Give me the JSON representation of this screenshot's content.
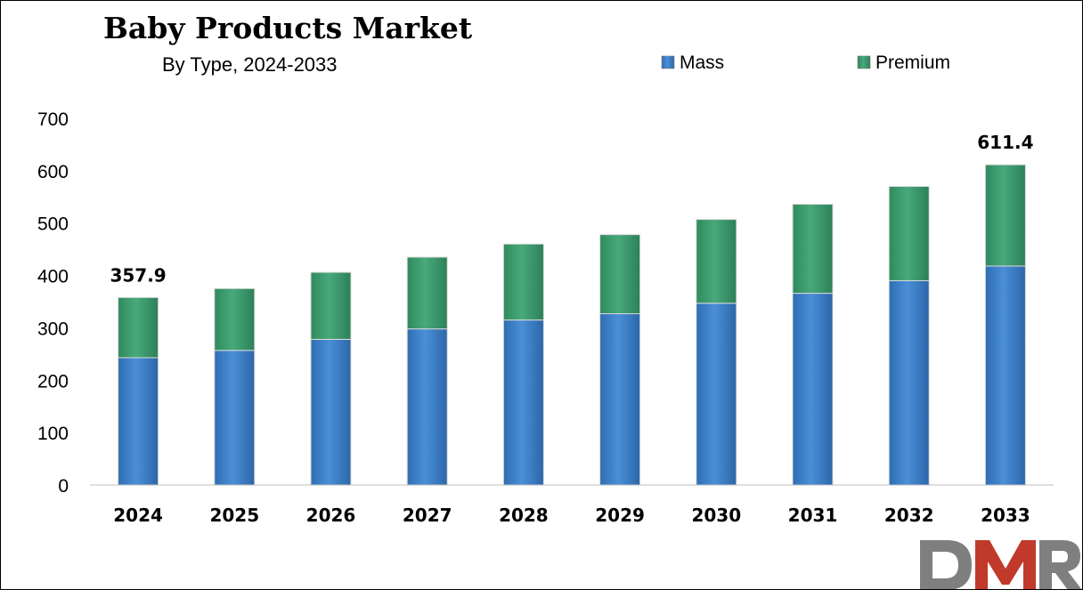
{
  "chart_data": {
    "type": "bar",
    "stacked": true,
    "title": "Baby Products Market",
    "subtitle": "By Type, 2024-2033",
    "categories": [
      "2024",
      "2025",
      "2026",
      "2027",
      "2028",
      "2029",
      "2030",
      "2031",
      "2032",
      "2033"
    ],
    "series": [
      {
        "name": "Mass",
        "values": [
          243,
          257,
          278,
          298,
          315,
          327,
          347,
          366,
          390,
          418
        ],
        "color": "#3b7fc8"
      },
      {
        "name": "Premium",
        "values": [
          114.9,
          118,
          128,
          137,
          145,
          151,
          160,
          170,
          180,
          193.4
        ],
        "color": "#3d9a6d"
      }
    ],
    "totals_labels": [
      {
        "category": "2024",
        "text": "357.9"
      },
      {
        "category": "2033",
        "text": "611.4"
      }
    ],
    "ylim": [
      0,
      700
    ],
    "yticks": [
      "0",
      "100",
      "200",
      "300",
      "400",
      "500",
      "600",
      "700"
    ],
    "grid": false,
    "legend": "top-right",
    "xlabel": "",
    "ylabel": ""
  },
  "logo": {
    "text": "DMR",
    "colors": [
      "#7f7f7f",
      "#c0392b",
      "#7f7f7f"
    ]
  }
}
